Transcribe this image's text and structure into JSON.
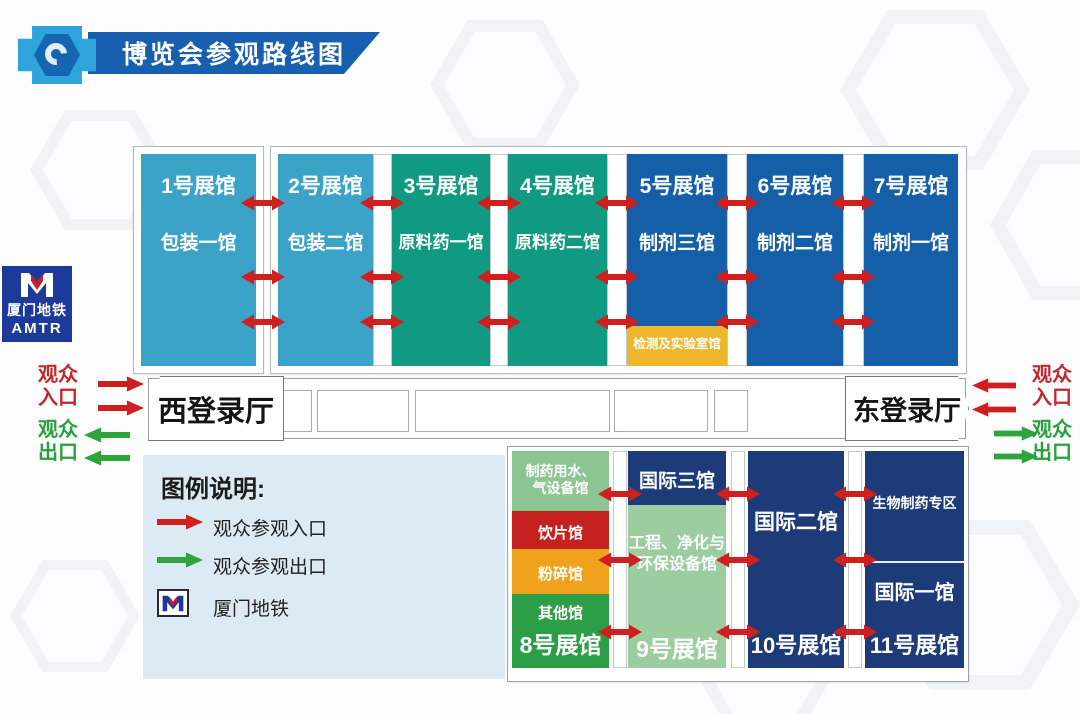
{
  "banner": {
    "title": "博览会参观路线图"
  },
  "metro_badge": {
    "cn": "厦门地铁",
    "en": "AMTR"
  },
  "left_gate": {
    "in1": "观众",
    "in2": "入口",
    "out1": "观众",
    "out2": "出口"
  },
  "right_gate": {
    "in1": "观众",
    "in2": "入口",
    "out1": "观众",
    "out2": "出口"
  },
  "registration": {
    "west": "西登录厅",
    "east": "东登录厅"
  },
  "halls_top": [
    {
      "number": "1号展馆",
      "name": "包装一馆"
    },
    {
      "number": "2号展馆",
      "name": "包装二馆"
    },
    {
      "number": "3号展馆",
      "name": "原料药一馆"
    },
    {
      "number": "4号展馆",
      "name": "原料药二馆"
    },
    {
      "number": "5号展馆",
      "name": "制剂三馆",
      "sub": "检测及实验室馆"
    },
    {
      "number": "6号展馆",
      "name": "制剂二馆"
    },
    {
      "number": "7号展馆",
      "name": "制剂一馆"
    }
  ],
  "legend": {
    "title": "图例说明:",
    "entrance": "观众参观入口",
    "exit": "观众参观出口",
    "metro": "厦门地铁"
  },
  "hall8": {
    "number": "8号展馆",
    "s1a": "制药用水、",
    "s1b": "气设备馆",
    "s2": "饮片馆",
    "s3": "粉碎馆",
    "s4": "其他馆"
  },
  "hall9": {
    "number": "9号展馆",
    "top": "国际三馆",
    "m1": "工程、净化与",
    "m2": "环保设备馆"
  },
  "hall10": {
    "number": "10号展馆",
    "name": "国际二馆"
  },
  "hall11": {
    "number": "11号展馆",
    "zone": "生物制药专区",
    "name": "国际一馆"
  },
  "colors": {
    "banner_blue": "#185fb0",
    "logo_light_blue": "#2fa3db",
    "metro_navy": "#1b3a99",
    "hall_light_blue": "#3ba2c8",
    "hall_teal": "#0f9a81",
    "hall_deep_blue": "#155fa9",
    "hall_navy": "#1c3b78",
    "lab_yellow": "#edb62d",
    "light_green_a": "#8dc592",
    "light_green_b": "#9ccda1",
    "block_red": "#c5211f",
    "block_orange": "#f0a21c",
    "block_green": "#2d9e48",
    "arrow_red": "#cf1f1f",
    "arrow_green": "#2fa33c",
    "legend_bg": "#dceaf3"
  }
}
